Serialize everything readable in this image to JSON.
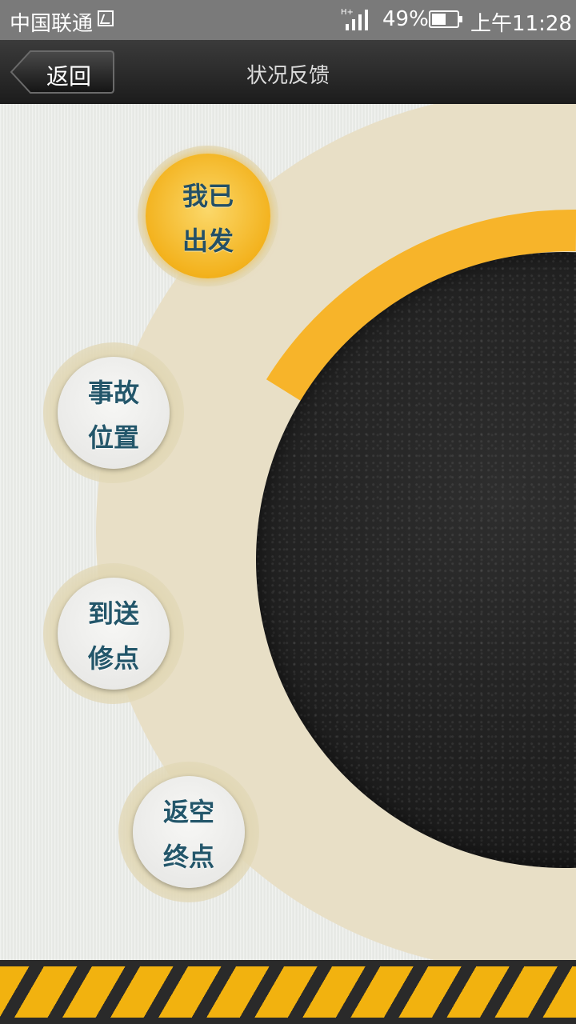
{
  "status_bar": {
    "carrier": "中国联通",
    "network_type": "H+",
    "battery_percent": "49%",
    "battery_level": 0.49,
    "time": "上午11:28"
  },
  "header": {
    "back_label": "返回",
    "title": "状况反馈"
  },
  "actions": [
    {
      "line1": "我已",
      "line2": "出发",
      "active": true
    },
    {
      "line1": "事故",
      "line2": "位置",
      "active": false
    },
    {
      "line1": "到送",
      "line2": "修点",
      "active": false
    },
    {
      "line1": "返空",
      "line2": "终点",
      "active": false
    }
  ],
  "colors": {
    "accent": "#f3b21d",
    "button_text": "#23566a",
    "header_bg": "#2a2a2a",
    "status_bar_bg": "#7a7a7a",
    "ring_beige": "#e8dfc6",
    "dial_dark": "#1f1f1f"
  }
}
